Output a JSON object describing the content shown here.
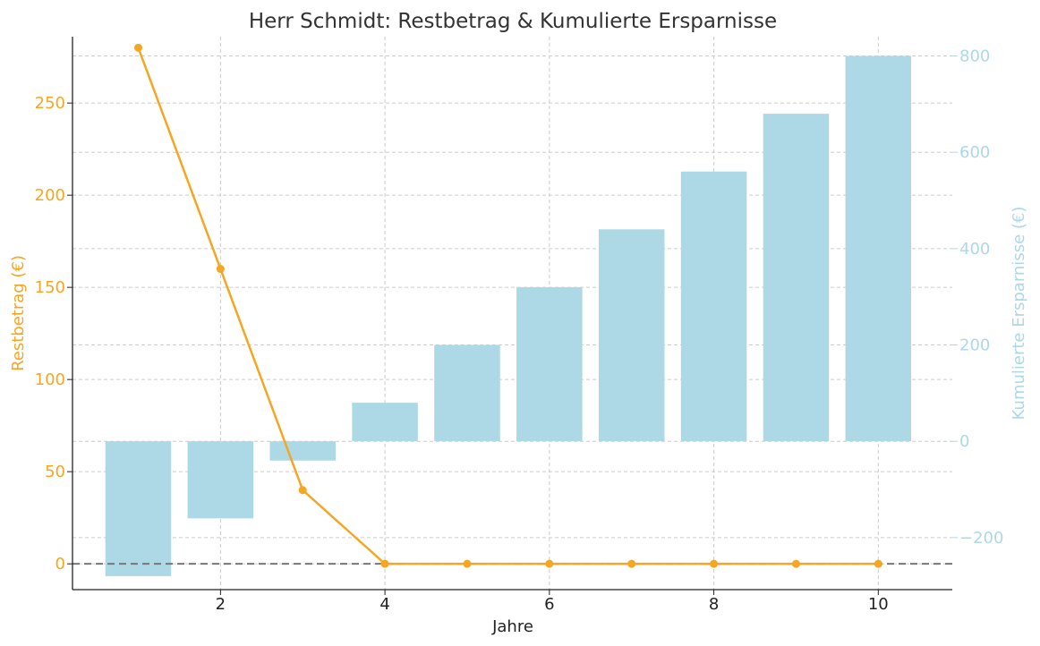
{
  "chart_data": {
    "type": "bar",
    "title": "Herr Schmidt: Restbetrag & Kumulierte Ersparnisse",
    "xlabel": "Jahre",
    "ylabel_left": "Restbetrag (€)",
    "ylabel_right": "Kumulierte Ersparnisse (€)",
    "x": [
      1,
      2,
      3,
      4,
      5,
      6,
      7,
      8,
      9,
      10
    ],
    "x_ticks": [
      2,
      4,
      6,
      8,
      10
    ],
    "xlim": [
      0.2,
      10.9
    ],
    "series": [
      {
        "chart_type": "line",
        "axis": "left",
        "color": "#f5a623",
        "marker": "circle",
        "values": [
          280,
          160,
          40,
          0,
          0,
          0,
          0,
          0,
          0,
          0
        ]
      },
      {
        "chart_type": "bar",
        "axis": "right",
        "color": "#add8e6",
        "values": [
          -280,
          -160,
          -40,
          80,
          200,
          320,
          440,
          560,
          680,
          800
        ]
      }
    ],
    "ylim_left": [
      -14,
      286
    ],
    "ylim_right": [
      -308,
      840
    ],
    "y_ticks_left": [
      0,
      50,
      100,
      150,
      200,
      250
    ],
    "y_ticks_right": [
      -200,
      0,
      200,
      400,
      600,
      800
    ],
    "y_tick_labels_right": [
      "−200",
      "0",
      "200",
      "400",
      "600",
      "800"
    ],
    "reference_line": {
      "axis": "left",
      "value": 0,
      "style": "dashed",
      "color": "#777777"
    },
    "grid": true
  }
}
